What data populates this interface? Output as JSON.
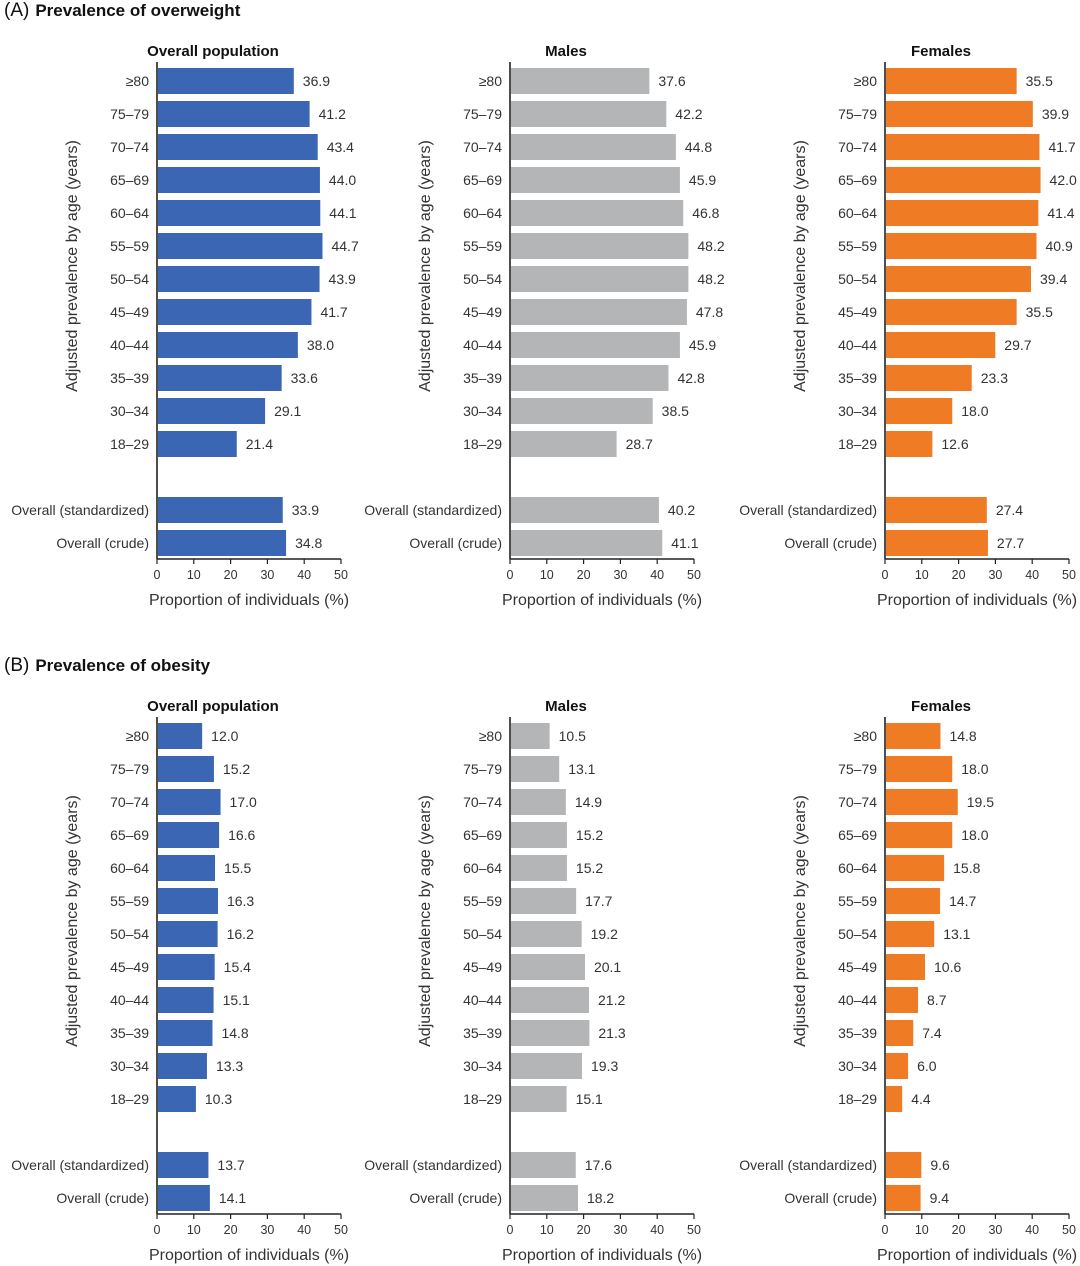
{
  "panels": [
    {
      "letter": "(A)",
      "title": "Prevalence of overweight"
    },
    {
      "letter": "(B)",
      "title": "Prevalence of obesity"
    }
  ],
  "colors": {
    "overall": "#3a66b4",
    "males": "#b4b5b7",
    "females": "#ef7b25",
    "axis": "#222222"
  },
  "chart_data": [
    {
      "type": "bar",
      "orientation": "horizontal",
      "panel": "(A) Prevalence of overweight",
      "title": "Overall population",
      "categories": [
        "≥80",
        "75–79",
        "70–74",
        "65–69",
        "60–64",
        "55–59",
        "50–54",
        "45–49",
        "40–44",
        "35–39",
        "30–34",
        "18–29",
        "Overall (standardized)",
        "Overall (crude)"
      ],
      "values": [
        36.9,
        41.2,
        43.4,
        44.0,
        44.1,
        44.7,
        43.9,
        41.7,
        38.0,
        33.6,
        29.1,
        21.4,
        33.9,
        34.8
      ],
      "value_labels": [
        "36.9",
        "41.2",
        "43.4",
        "44.0",
        "44.1",
        "44.7",
        "43.9",
        "41.7",
        "38.0",
        "33.6",
        "29.1",
        "21.4",
        "33.9",
        "34.8"
      ],
      "xlabel": "Proportion of individuals (%)",
      "ylabel": "Adjusted prevalence by age (years)",
      "xlim": [
        0,
        50
      ],
      "xticks": [
        "0",
        "10",
        "20",
        "30",
        "40",
        "50"
      ],
      "color_key": "overall"
    },
    {
      "type": "bar",
      "orientation": "horizontal",
      "panel": "(A) Prevalence of overweight",
      "title": "Males",
      "categories": [
        "≥80",
        "75–79",
        "70–74",
        "65–69",
        "60–64",
        "55–59",
        "50–54",
        "45–49",
        "40–44",
        "35–39",
        "30–34",
        "18–29",
        "Overall (standardized)",
        "Overall (crude)"
      ],
      "values": [
        37.6,
        42.2,
        44.8,
        45.9,
        46.8,
        48.2,
        48.2,
        47.8,
        45.9,
        42.8,
        38.5,
        28.7,
        40.2,
        41.1
      ],
      "value_labels": [
        "37.6",
        "42.2",
        "44.8",
        "45.9",
        "46.8",
        "48.2",
        "48.2",
        "47.8",
        "45.9",
        "42.8",
        "38.5",
        "28.7",
        "40.2",
        "41.1"
      ],
      "xlabel": "Proportion of individuals (%)",
      "ylabel": "Adjusted prevalence by age (years)",
      "xlim": [
        0,
        50
      ],
      "xticks": [
        "0",
        "10",
        "20",
        "30",
        "40",
        "50"
      ],
      "color_key": "males"
    },
    {
      "type": "bar",
      "orientation": "horizontal",
      "panel": "(A) Prevalence of overweight",
      "title": "Females",
      "categories": [
        "≥80",
        "75–79",
        "70–74",
        "65–69",
        "60–64",
        "55–59",
        "50–54",
        "45–49",
        "40–44",
        "35–39",
        "30–34",
        "18–29",
        "Overall (standardized)",
        "Overall (crude)"
      ],
      "values": [
        35.5,
        39.9,
        41.7,
        42.0,
        41.4,
        40.9,
        39.4,
        35.5,
        29.7,
        23.3,
        18.0,
        12.6,
        27.4,
        27.7
      ],
      "value_labels": [
        "35.5",
        "39.9",
        "41.7",
        "42.0",
        "41.4",
        "40.9",
        "39.4",
        "35.5",
        "29.7",
        "23.3",
        "18.0",
        "12.6",
        "27.4",
        "27.7"
      ],
      "xlabel": "Proportion of individuals (%)",
      "ylabel": "Adjusted prevalence by age (years)",
      "xlim": [
        0,
        50
      ],
      "xticks": [
        "0",
        "10",
        "20",
        "30",
        "40",
        "50"
      ],
      "color_key": "females"
    },
    {
      "type": "bar",
      "orientation": "horizontal",
      "panel": "(B) Prevalence of obesity",
      "title": "Overall population",
      "categories": [
        "≥80",
        "75–79",
        "70–74",
        "65–69",
        "60–64",
        "55–59",
        "50–54",
        "45–49",
        "40–44",
        "35–39",
        "30–34",
        "18–29",
        "Overall (standardized)",
        "Overall (crude)"
      ],
      "values": [
        12.0,
        15.2,
        17.0,
        16.6,
        15.5,
        16.3,
        16.2,
        15.4,
        15.1,
        14.8,
        13.3,
        10.3,
        13.7,
        14.1
      ],
      "value_labels": [
        "12.0",
        "15.2",
        "17.0",
        "16.6",
        "15.5",
        "16.3",
        "16.2",
        "15.4",
        "15.1",
        "14.8",
        "13.3",
        "10.3",
        "13.7",
        "14.1"
      ],
      "xlabel": "Proportion of individuals (%)",
      "ylabel": "Adjusted prevalence by age (years)",
      "xlim": [
        0,
        50
      ],
      "xticks": [
        "0",
        "10",
        "20",
        "30",
        "40",
        "50"
      ],
      "color_key": "overall"
    },
    {
      "type": "bar",
      "orientation": "horizontal",
      "panel": "(B) Prevalence of obesity",
      "title": "Males",
      "categories": [
        "≥80",
        "75–79",
        "70–74",
        "65–69",
        "60–64",
        "55–59",
        "50–54",
        "45–49",
        "40–44",
        "35–39",
        "30–34",
        "18–29",
        "Overall (standardized)",
        "Overall (crude)"
      ],
      "values": [
        10.5,
        13.1,
        14.9,
        15.2,
        15.2,
        17.7,
        19.2,
        20.1,
        21.2,
        21.3,
        19.3,
        15.1,
        17.6,
        18.2
      ],
      "value_labels": [
        "10.5",
        "13.1",
        "14.9",
        "15.2",
        "15.2",
        "17.7",
        "19.2",
        "20.1",
        "21.2",
        "21.3",
        "19.3",
        "15.1",
        "17.6",
        "18.2"
      ],
      "xlabel": "Proportion of individuals (%)",
      "ylabel": "Adjusted prevalence by age (years)",
      "xlim": [
        0,
        50
      ],
      "xticks": [
        "0",
        "10",
        "20",
        "30",
        "40",
        "50"
      ],
      "color_key": "males"
    },
    {
      "type": "bar",
      "orientation": "horizontal",
      "panel": "(B) Prevalence of obesity",
      "title": "Females",
      "categories": [
        "≥80",
        "75–79",
        "70–74",
        "65–69",
        "60–64",
        "55–59",
        "50–54",
        "45–49",
        "40–44",
        "35–39",
        "30–34",
        "18–29",
        "Overall (standardized)",
        "Overall (crude)"
      ],
      "values": [
        14.8,
        18.0,
        19.5,
        18.0,
        15.8,
        14.7,
        13.1,
        10.6,
        8.7,
        7.4,
        6.0,
        4.4,
        9.6,
        9.4
      ],
      "value_labels": [
        "14.8",
        "18.0",
        "19.5",
        "18.0",
        "15.8",
        "14.7",
        "13.1",
        "10.6",
        "8.7",
        "7.4",
        "6.0",
        "4.4",
        "9.6",
        "9.4"
      ],
      "xlabel": "Proportion of individuals (%)",
      "ylabel": "Adjusted prevalence by age (years)",
      "xlim": [
        0,
        50
      ],
      "xticks": [
        "0",
        "10",
        "20",
        "30",
        "40",
        "50"
      ],
      "color_key": "females"
    }
  ]
}
